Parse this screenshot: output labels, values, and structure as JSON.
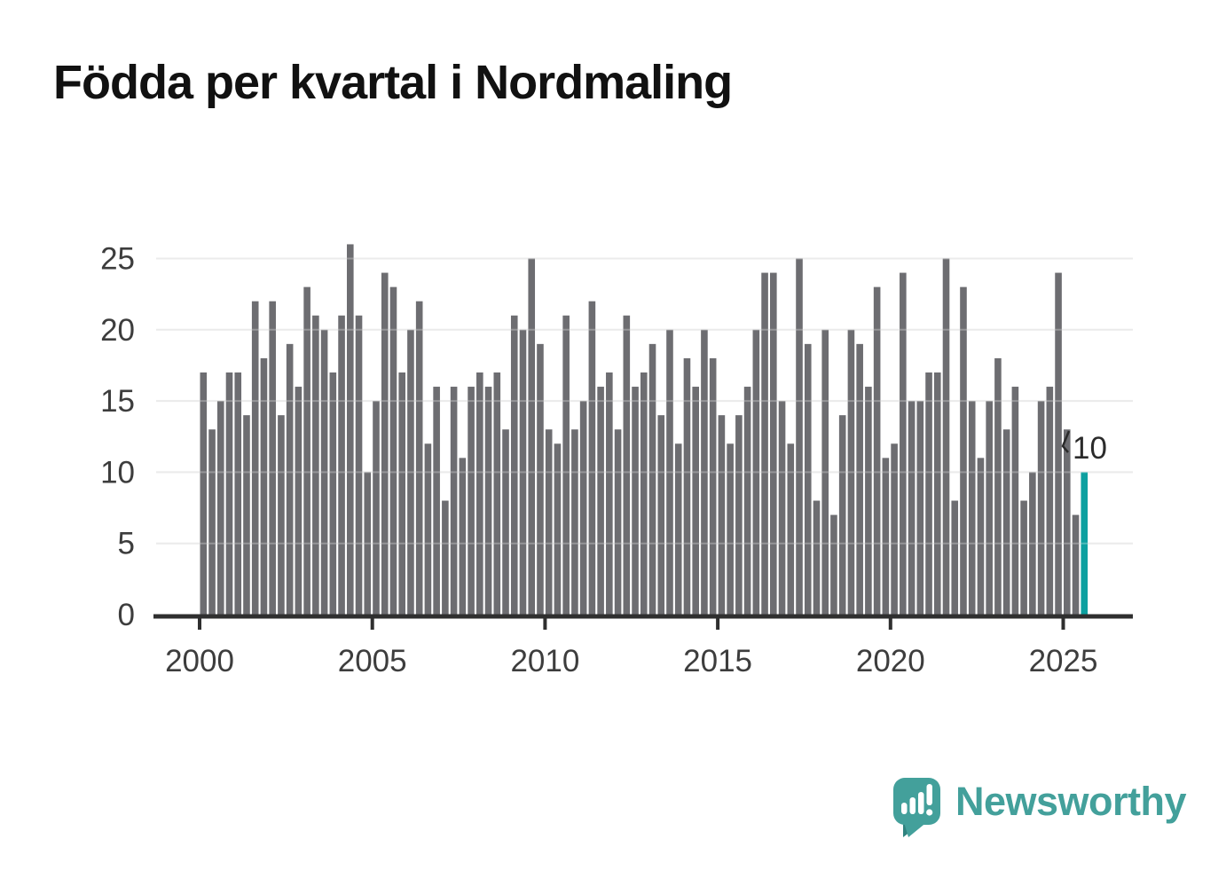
{
  "title": "Födda per kvartal i Nordmaling",
  "colors": {
    "bar": "#6d6d71",
    "highlight": "#0da0a0",
    "grid": "#e3e3e3",
    "grid_overlay": "rgba(255,255,255,0.28)",
    "axis": "#2f2f2f",
    "tick_label": "#3d3d3d",
    "annotation": "#2b2b2b",
    "logo": "#43a09b"
  },
  "chart_data": {
    "type": "bar",
    "title": "Födda per kvartal i Nordmaling",
    "x_unit": "quarter",
    "start_year": 2000,
    "start_quarter": 1,
    "end_period": "2025-Q3",
    "values": [
      17,
      13,
      15,
      17,
      17,
      14,
      22,
      18,
      22,
      14,
      19,
      16,
      23,
      21,
      20,
      17,
      21,
      26,
      21,
      10,
      15,
      24,
      23,
      17,
      20,
      22,
      12,
      16,
      8,
      16,
      11,
      16,
      17,
      16,
      17,
      13,
      21,
      20,
      25,
      19,
      13,
      12,
      21,
      13,
      15,
      22,
      16,
      17,
      13,
      21,
      16,
      17,
      19,
      14,
      20,
      12,
      18,
      16,
      20,
      18,
      14,
      12,
      14,
      16,
      20,
      24,
      24,
      15,
      12,
      25,
      19,
      8,
      20,
      7,
      14,
      20,
      19,
      16,
      23,
      11,
      12,
      24,
      15,
      15,
      17,
      17,
      25,
      8,
      23,
      15,
      11,
      15,
      18,
      13,
      16,
      8,
      10,
      15,
      16,
      24,
      13,
      7,
      10
    ],
    "y_ticks": [
      0,
      5,
      10,
      15,
      20,
      25
    ],
    "x_ticks": [
      "2000",
      "2005",
      "2010",
      "2015",
      "2020",
      "2025"
    ],
    "ylim": [
      0,
      26
    ],
    "grid": "horizontal",
    "legend": "none",
    "highlight": {
      "index": 102,
      "label": "10",
      "period": "2025-Q3"
    }
  },
  "logo": {
    "text": "Newsworthy"
  }
}
